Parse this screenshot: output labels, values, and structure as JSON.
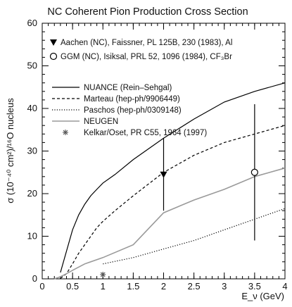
{
  "chart_data": {
    "type": "line",
    "title": "NC Coherent Pion Production Cross Section",
    "xlabel": "E_ν (GeV)",
    "ylabel": "σ (10⁻⁴⁰ cm²)/¹⁶O nucleus",
    "xlim": [
      0,
      4
    ],
    "ylim": [
      0,
      60
    ],
    "x_ticks": [
      "0",
      "0.5",
      "1",
      "1.5",
      "2",
      "2.5",
      "3",
      "3.5",
      "4"
    ],
    "y_ticks": [
      "0",
      "10",
      "20",
      "30",
      "40",
      "50",
      "60"
    ],
    "legend_position": "middle-left",
    "grid": false,
    "series": [
      {
        "name": "NUANCE (Rein–Sehgal)",
        "style": "solid",
        "color": "#000000",
        "x": [
          0.3,
          0.4,
          0.5,
          0.6,
          0.7,
          0.8,
          0.9,
          1.0,
          1.2,
          1.5,
          2.0,
          2.5,
          3.0,
          3.5,
          4.0
        ],
        "y": [
          1.5,
          6.5,
          11.5,
          15.0,
          17.5,
          19.5,
          21.0,
          22.5,
          24.5,
          28.0,
          33.0,
          37.5,
          41.5,
          44.0,
          46.0
        ]
      },
      {
        "name": "Marteau (hep-ph/9906449)",
        "style": "dashed",
        "color": "#000000",
        "x": [
          0.3,
          0.4,
          0.5,
          0.6,
          0.7,
          0.8,
          0.9,
          1.0,
          1.2,
          1.5,
          2.0,
          2.5,
          3.0,
          3.5,
          4.0
        ],
        "y": [
          0.1,
          1.2,
          3.5,
          6.0,
          8.0,
          10.0,
          12.0,
          13.5,
          16.0,
          19.5,
          25.0,
          29.0,
          32.0,
          34.0,
          36.0
        ]
      },
      {
        "name": "Paschos (hep-ph/0309148)",
        "style": "dotted",
        "color": "#000000",
        "x": [
          1.0,
          1.5,
          2.0,
          2.5,
          3.0,
          3.5,
          4.0
        ],
        "y": [
          3.5,
          5.0,
          7.0,
          9.0,
          11.5,
          14.0,
          16.5
        ]
      },
      {
        "name": "NEUGEN",
        "style": "solid",
        "color": "#9a9a9a",
        "x": [
          0.2,
          0.3,
          0.4,
          0.5,
          0.7,
          1.0,
          1.5,
          2.0,
          2.5,
          3.0,
          3.5,
          4.0
        ],
        "y": [
          0.0,
          0.5,
          1.2,
          2.0,
          3.5,
          5.0,
          8.0,
          15.5,
          18.5,
          21.0,
          24.0,
          26.0
        ]
      }
    ],
    "points": [
      {
        "name": "Aachen (NC), Faissner, PL 125B, 230 (1983), Al",
        "marker": "triangle-down",
        "x": 2.0,
        "y": 24.5,
        "y_err_low": 16.0,
        "y_err_high": 33.0
      },
      {
        "name": "GGM (NC), Isiksal, PRL 52, 1096 (1984), CF₃Br",
        "marker": "circle",
        "x": 3.5,
        "y": 25.0,
        "y_err_low": 9.0,
        "y_err_high": 41.0
      },
      {
        "name": "Kelkar/Oset, PR C55, 1964 (1997)",
        "marker": "star",
        "x": 1.0,
        "y": 1.0
      }
    ]
  }
}
